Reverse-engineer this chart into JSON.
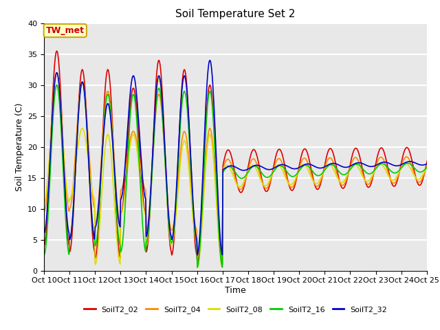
{
  "title": "Soil Temperature Set 2",
  "xlabel": "Time",
  "ylabel": "Soil Temperature (C)",
  "ylim": [
    0,
    40
  ],
  "background_color": "#e8e8e8",
  "annotation_text": "TW_met",
  "annotation_color": "#cc0000",
  "annotation_bg": "#ffffcc",
  "annotation_border": "#ccaa00",
  "series_names": [
    "SoilT2_02",
    "SoilT2_04",
    "SoilT2_08",
    "SoilT2_16",
    "SoilT2_32"
  ],
  "series_colors": [
    "#dd0000",
    "#ff8800",
    "#dddd00",
    "#00cc00",
    "#0000cc"
  ],
  "series_lw": [
    1.2,
    1.2,
    1.2,
    1.2,
    1.2
  ],
  "xtick_labels": [
    "Oct 10",
    "Oct 11",
    "Oct 12",
    "Oct 13",
    "Oct 14",
    "Oct 15",
    "Oct 16",
    "Oct 17",
    "Oct 18",
    "Oct 19",
    "Oct 20",
    "Oct 21",
    "Oct 22",
    "Oct 23",
    "Oct 24",
    "Oct 25"
  ],
  "ytick_vals": [
    0,
    5,
    10,
    15,
    20,
    25,
    30,
    35,
    40
  ],
  "title_fontsize": 11,
  "axis_label_fontsize": 9,
  "tick_fontsize": 8,
  "legend_fontsize": 8,
  "annotation_fontsize": 9
}
